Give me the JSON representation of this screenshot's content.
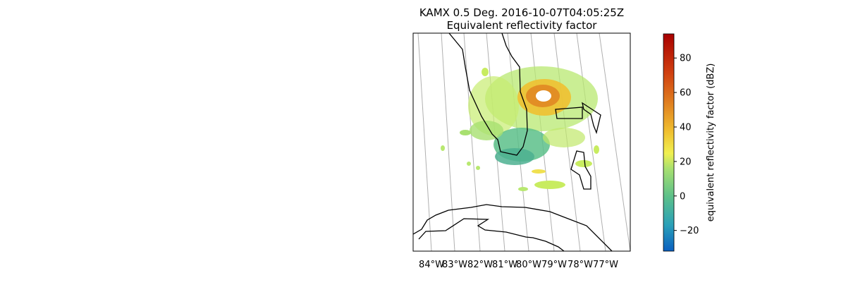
{
  "figure": {
    "title_line1": "KAMX 0.5 Deg. 2016-10-07T04:05:25Z",
    "title_line2": "Equivalent reflectivity factor"
  },
  "map": {
    "longitude_ticks": [
      "84°W",
      "83°W",
      "82°W",
      "81°W",
      "80°W",
      "79°W",
      "78°W",
      "77°W"
    ],
    "gridlines": true,
    "coastline_color": "#000000",
    "gridline_color": "#b0b0b0"
  },
  "colorbar": {
    "label": "equivalent reflectivity factor (dBZ)",
    "ticks": [
      "80",
      "60",
      "40",
      "20",
      "0",
      "−20"
    ],
    "range": [
      -32,
      94
    ],
    "colormap_stops": [
      "#0a5fc0",
      "#2aa0b8",
      "#5cc08a",
      "#a8e070",
      "#f0f050",
      "#f0c030",
      "#e08020",
      "#d04010",
      "#a80000"
    ]
  }
}
